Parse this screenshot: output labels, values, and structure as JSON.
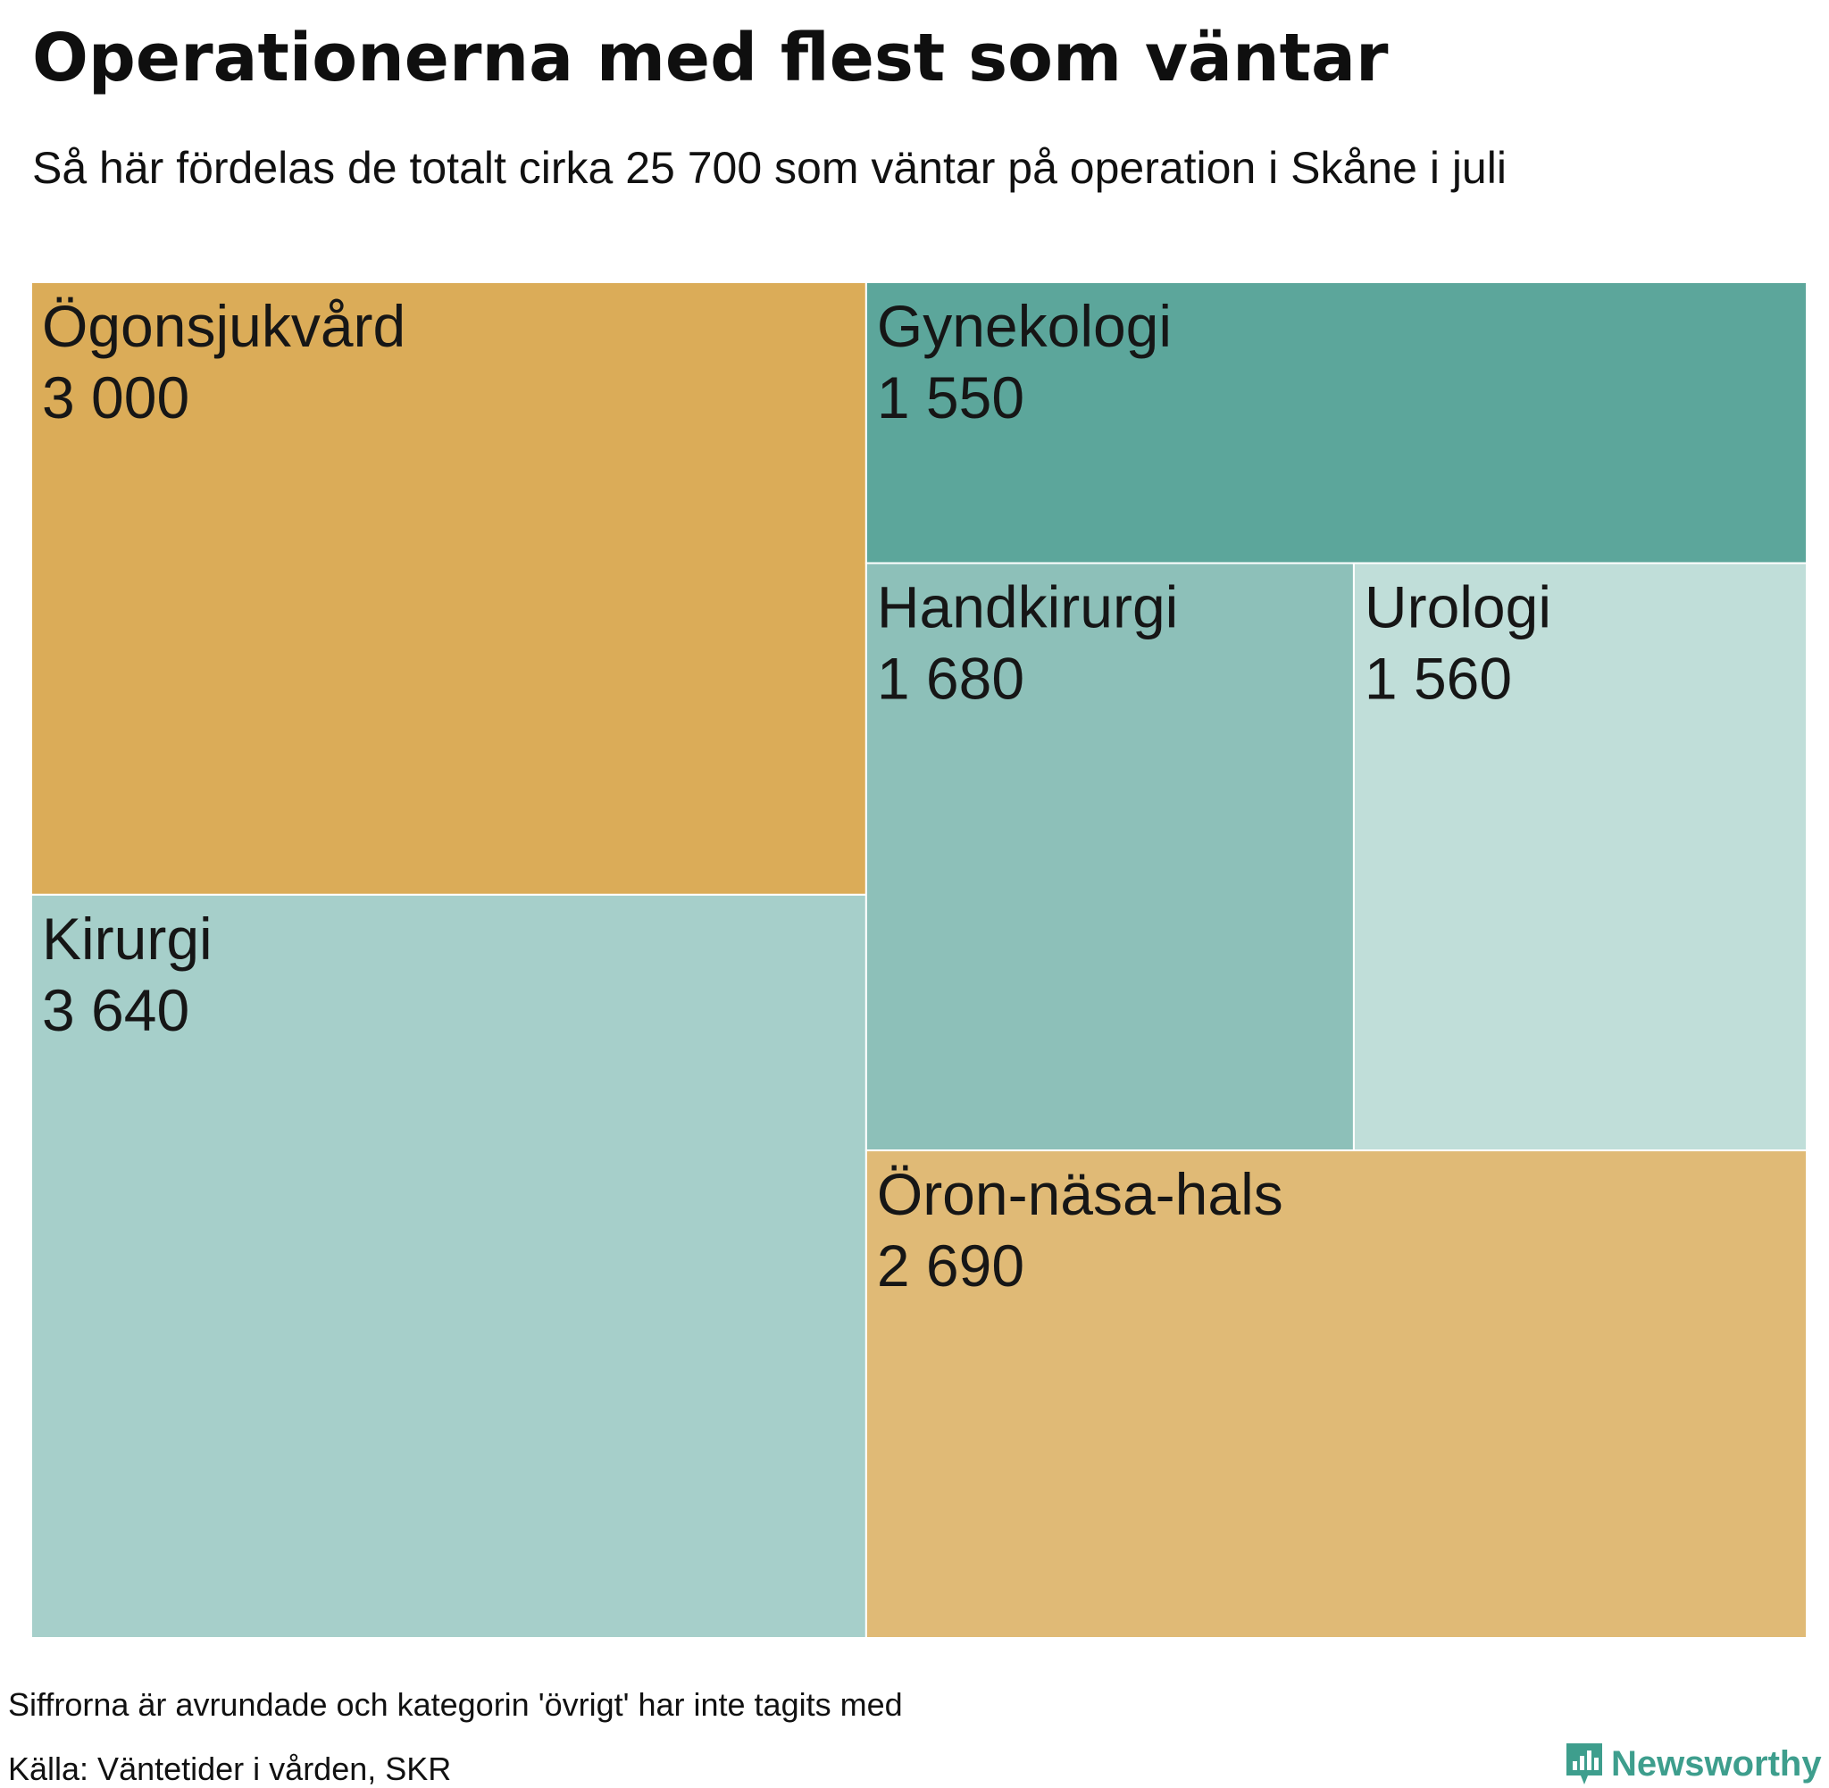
{
  "title": "Operationerna med flest som väntar",
  "subtitle": "Så här fördelas de totalt cirka 25 700 som väntar på operation i Skåne i juli",
  "footer": {
    "note": "Siffrorna är avrundade och kategorin 'övrigt' har inte tagits med",
    "source": "Källa: Väntetider i vården, SKR",
    "brand": "Newsworthy"
  },
  "colors": {
    "brand": "#3e9e8d",
    "tile_border": "#ffffff"
  },
  "chart_data": {
    "type": "treemap",
    "title": "Operationerna med flest som väntar",
    "items": [
      {
        "label": "Ögonsjukvård",
        "value": 3000,
        "display": "3 000",
        "color": "#dbac58"
      },
      {
        "label": "Kirurgi",
        "value": 3640,
        "display": "3 640",
        "color": "#a6cfca"
      },
      {
        "label": "Gynekologi",
        "value": 1550,
        "display": "1 550",
        "color": "#5ca69b"
      },
      {
        "label": "Handkirurgi",
        "value": 1680,
        "display": "1 680",
        "color": "#8dc0b9"
      },
      {
        "label": "Urologi",
        "value": 1560,
        "display": "1 560",
        "color": "#c0ded9"
      },
      {
        "label": "Öron-näsa-hals",
        "value": 2690,
        "display": "2 690",
        "color": "#e0ba76"
      }
    ]
  }
}
